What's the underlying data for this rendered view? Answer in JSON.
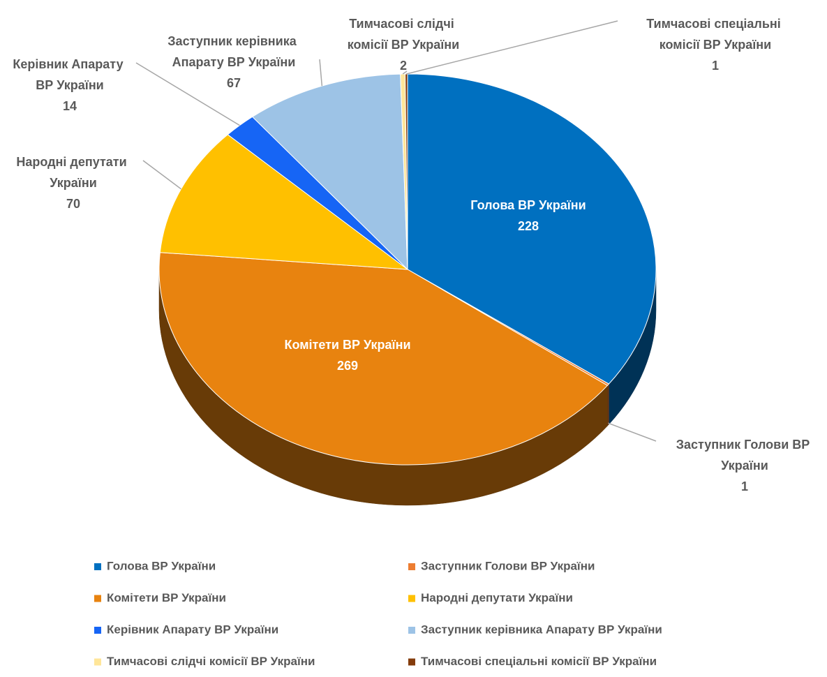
{
  "chart_data": {
    "type": "pie",
    "categories": [
      "Голова ВР України",
      "Заступник Голови ВР України",
      "Комітети ВР України",
      "Народні депутати України",
      "Керівник Апарату ВР України",
      "Заступник керівника Апарату ВР України",
      "Тимчасові слідчі комісії ВР України",
      "Тимчасові спеціальні комісії ВР України"
    ],
    "values": [
      228,
      1,
      269,
      70,
      14,
      67,
      2,
      1
    ],
    "colors": [
      "#0070c0",
      "#ed7d31",
      "#e8830f",
      "#ffc000",
      "#1665f5",
      "#9dc3e6",
      "#ffe699",
      "#843c0c"
    ],
    "legend": "bottom"
  }
}
